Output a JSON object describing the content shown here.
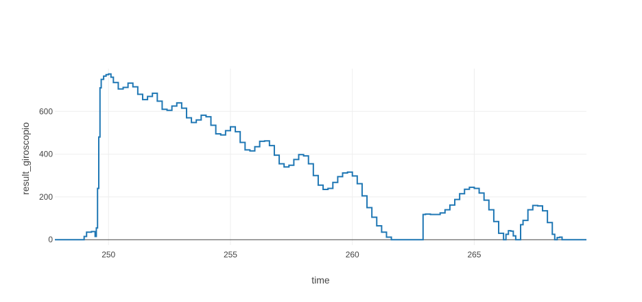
{
  "chart_data": {
    "type": "line",
    "line_shape": "step",
    "xlabel": "time",
    "ylabel": "result_giroscopio",
    "xlim": [
      247.8,
      269.6
    ],
    "ylim": [
      -25,
      800
    ],
    "x_ticks": [
      250,
      255,
      260,
      265
    ],
    "y_ticks": [
      0,
      200,
      400,
      600
    ],
    "grid": true,
    "colors": {
      "line": "#1f77b4",
      "grid": "#eeeeee",
      "zero_line": "#444444",
      "text": "#444444"
    },
    "series": [
      {
        "x": [
          247.8,
          248.7,
          249.0,
          249.1,
          249.3,
          249.45,
          249.5,
          249.55,
          249.6,
          249.65,
          249.7,
          249.8,
          249.9,
          250.0,
          250.1,
          250.2,
          250.4,
          250.6,
          250.8,
          251.0,
          251.2,
          251.4,
          251.6,
          251.8,
          252.0,
          252.2,
          252.4,
          252.6,
          252.8,
          253.0,
          253.2,
          253.4,
          253.6,
          253.8,
          254.0,
          254.2,
          254.4,
          254.6,
          254.8,
          255.0,
          255.2,
          255.4,
          255.6,
          255.8,
          256.0,
          256.2,
          256.4,
          256.6,
          256.8,
          257.0,
          257.2,
          257.4,
          257.6,
          257.8,
          258.0,
          258.2,
          258.4,
          258.6,
          258.8,
          259.0,
          259.2,
          259.4,
          259.6,
          259.8,
          260.0,
          260.2,
          260.4,
          260.6,
          260.8,
          261.0,
          261.2,
          261.4,
          261.6,
          261.8,
          262.0,
          262.2,
          262.4,
          262.6,
          262.8,
          262.9,
          263.0,
          263.2,
          263.4,
          263.6,
          263.8,
          264.0,
          264.2,
          264.4,
          264.6,
          264.8,
          265.0,
          265.2,
          265.4,
          265.6,
          265.8,
          266.0,
          266.2,
          266.3,
          266.4,
          266.5,
          266.6,
          266.7,
          266.8,
          266.9,
          267.0,
          267.2,
          267.4,
          267.6,
          267.8,
          268.0,
          268.2,
          268.3,
          268.4,
          268.5,
          268.6,
          268.8,
          269.6
        ],
        "y": [
          0,
          0,
          15,
          35,
          38,
          15,
          55,
          240,
          480,
          710,
          750,
          765,
          772,
          775,
          760,
          735,
          705,
          712,
          732,
          715,
          680,
          655,
          670,
          685,
          648,
          610,
          605,
          625,
          640,
          615,
          570,
          548,
          560,
          582,
          575,
          535,
          495,
          490,
          510,
          528,
          505,
          455,
          420,
          415,
          435,
          460,
          462,
          440,
          395,
          355,
          340,
          348,
          375,
          398,
          392,
          355,
          300,
          255,
          235,
          240,
          268,
          295,
          312,
          316,
          298,
          262,
          205,
          150,
          105,
          65,
          35,
          12,
          0,
          0,
          0,
          0,
          0,
          0,
          0,
          118,
          120,
          118,
          118,
          125,
          140,
          162,
          188,
          215,
          236,
          245,
          240,
          218,
          185,
          140,
          85,
          30,
          0,
          25,
          42,
          40,
          18,
          0,
          0,
          70,
          90,
          140,
          160,
          158,
          135,
          80,
          25,
          0,
          10,
          12,
          0,
          0,
          0
        ]
      }
    ]
  }
}
